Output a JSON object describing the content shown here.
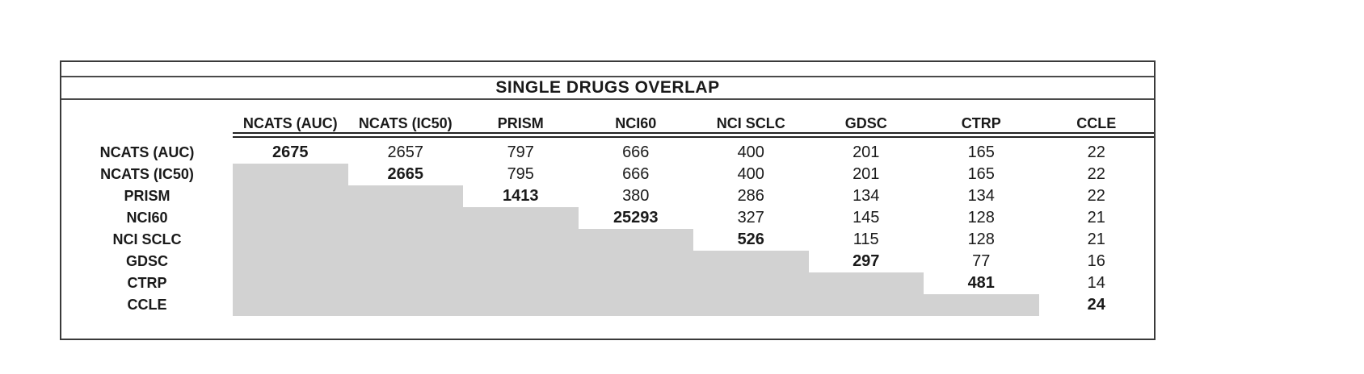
{
  "title": "SINGLE DRUGS OVERLAP",
  "colors": {
    "shade": "#d2d2d2",
    "border": "#3a3a3a",
    "rule": "#4a4a4a",
    "text": "#1a1a1a"
  },
  "chart_data": {
    "type": "table",
    "title": "SINGLE DRUGS OVERLAP",
    "columns": [
      "NCATS (AUC)",
      "NCATS (IC50)",
      "PRISM",
      "NCI60",
      "NCI SCLC",
      "GDSC",
      "CTRP",
      "CCLE"
    ],
    "rows": [
      {
        "label": "NCATS (AUC)",
        "values": [
          2675,
          2657,
          797,
          666,
          400,
          201,
          165,
          22
        ]
      },
      {
        "label": "NCATS (IC50)",
        "values": [
          null,
          2665,
          795,
          666,
          400,
          201,
          165,
          22
        ]
      },
      {
        "label": "PRISM",
        "values": [
          null,
          null,
          1413,
          380,
          286,
          134,
          134,
          22
        ]
      },
      {
        "label": "NCI60",
        "values": [
          null,
          null,
          null,
          25293,
          327,
          145,
          128,
          21
        ]
      },
      {
        "label": "NCI SCLC",
        "values": [
          null,
          null,
          null,
          null,
          526,
          115,
          128,
          21
        ]
      },
      {
        "label": "GDSC",
        "values": [
          null,
          null,
          null,
          null,
          null,
          297,
          77,
          16
        ]
      },
      {
        "label": "CTRP",
        "values": [
          null,
          null,
          null,
          null,
          null,
          null,
          481,
          14
        ]
      },
      {
        "label": "CCLE",
        "values": [
          null,
          null,
          null,
          null,
          null,
          null,
          null,
          24
        ]
      }
    ],
    "layout": {
      "diagonal_bold": true,
      "lower_triangle_shaded": true,
      "header_rule": "double",
      "gridlines": false
    }
  }
}
